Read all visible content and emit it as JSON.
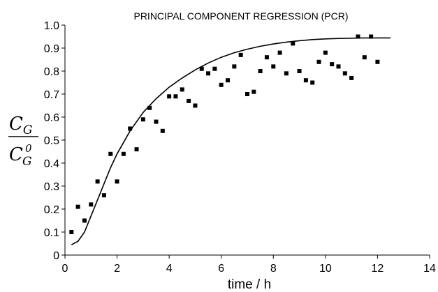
{
  "chart_data": {
    "type": "scatter",
    "title": "PRINCIPAL COMPONENT REGRESSION (PCR)",
    "xlabel": "time / h",
    "ylabel": {
      "numerator_main": "C",
      "numerator_sub": "G",
      "denominator_main": "C",
      "denominator_sub": "G",
      "denominator_sup": "0"
    },
    "xlim": [
      0,
      14
    ],
    "ylim": [
      0,
      1.0
    ],
    "x_ticks": [
      "0",
      "2",
      "4",
      "6",
      "8",
      "10",
      "12",
      "14"
    ],
    "y_ticks": [
      "0",
      "0.1",
      "0.2",
      "0.3",
      "0.4",
      "0.5",
      "0.6",
      "0.7",
      "0.8",
      "0.9",
      "1.0"
    ],
    "grid": false,
    "series": [
      {
        "type": "scatter",
        "marker": "square",
        "color": "#000000",
        "points": [
          [
            0.25,
            0.1
          ],
          [
            0.5,
            0.21
          ],
          [
            0.75,
            0.15
          ],
          [
            1.0,
            0.22
          ],
          [
            1.25,
            0.32
          ],
          [
            1.5,
            0.26
          ],
          [
            1.75,
            0.44
          ],
          [
            2.0,
            0.32
          ],
          [
            2.25,
            0.44
          ],
          [
            2.5,
            0.55
          ],
          [
            2.75,
            0.46
          ],
          [
            3.0,
            0.59
          ],
          [
            3.25,
            0.64
          ],
          [
            3.5,
            0.58
          ],
          [
            3.75,
            0.54
          ],
          [
            4.0,
            0.69
          ],
          [
            4.25,
            0.69
          ],
          [
            4.5,
            0.72
          ],
          [
            4.75,
            0.67
          ],
          [
            5.0,
            0.65
          ],
          [
            5.25,
            0.81
          ],
          [
            5.5,
            0.79
          ],
          [
            5.75,
            0.81
          ],
          [
            6.0,
            0.74
          ],
          [
            6.25,
            0.76
          ],
          [
            6.5,
            0.82
          ],
          [
            6.75,
            0.87
          ],
          [
            7.0,
            0.7
          ],
          [
            7.25,
            0.71
          ],
          [
            7.5,
            0.8
          ],
          [
            7.75,
            0.86
          ],
          [
            8.0,
            0.82
          ],
          [
            8.25,
            0.88
          ],
          [
            8.5,
            0.79
          ],
          [
            8.75,
            0.92
          ],
          [
            9.0,
            0.8
          ],
          [
            9.25,
            0.76
          ],
          [
            9.5,
            0.75
          ],
          [
            9.75,
            0.84
          ],
          [
            10.0,
            0.88
          ],
          [
            10.25,
            0.83
          ],
          [
            10.5,
            0.82
          ],
          [
            10.75,
            0.79
          ],
          [
            11.0,
            0.77
          ],
          [
            11.25,
            0.95
          ],
          [
            11.5,
            0.86
          ],
          [
            11.75,
            0.95
          ],
          [
            12.0,
            0.84
          ]
        ]
      },
      {
        "type": "line",
        "color": "#000000",
        "points": [
          [
            0.25,
            0.045
          ],
          [
            0.5,
            0.06
          ],
          [
            0.75,
            0.1
          ],
          [
            1.0,
            0.17
          ],
          [
            1.25,
            0.24
          ],
          [
            1.5,
            0.31
          ],
          [
            1.75,
            0.38
          ],
          [
            2.0,
            0.44
          ],
          [
            2.5,
            0.54
          ],
          [
            3.0,
            0.62
          ],
          [
            3.5,
            0.68
          ],
          [
            4.0,
            0.73
          ],
          [
            4.5,
            0.77
          ],
          [
            5.0,
            0.805
          ],
          [
            5.5,
            0.835
          ],
          [
            6.0,
            0.86
          ],
          [
            6.5,
            0.88
          ],
          [
            7.0,
            0.895
          ],
          [
            7.5,
            0.908
          ],
          [
            8.0,
            0.918
          ],
          [
            8.5,
            0.926
          ],
          [
            9.0,
            0.932
          ],
          [
            9.5,
            0.937
          ],
          [
            10.0,
            0.94
          ],
          [
            10.5,
            0.942
          ],
          [
            11.0,
            0.943
          ],
          [
            11.5,
            0.944
          ],
          [
            12.0,
            0.944
          ],
          [
            12.5,
            0.944
          ]
        ]
      }
    ]
  }
}
